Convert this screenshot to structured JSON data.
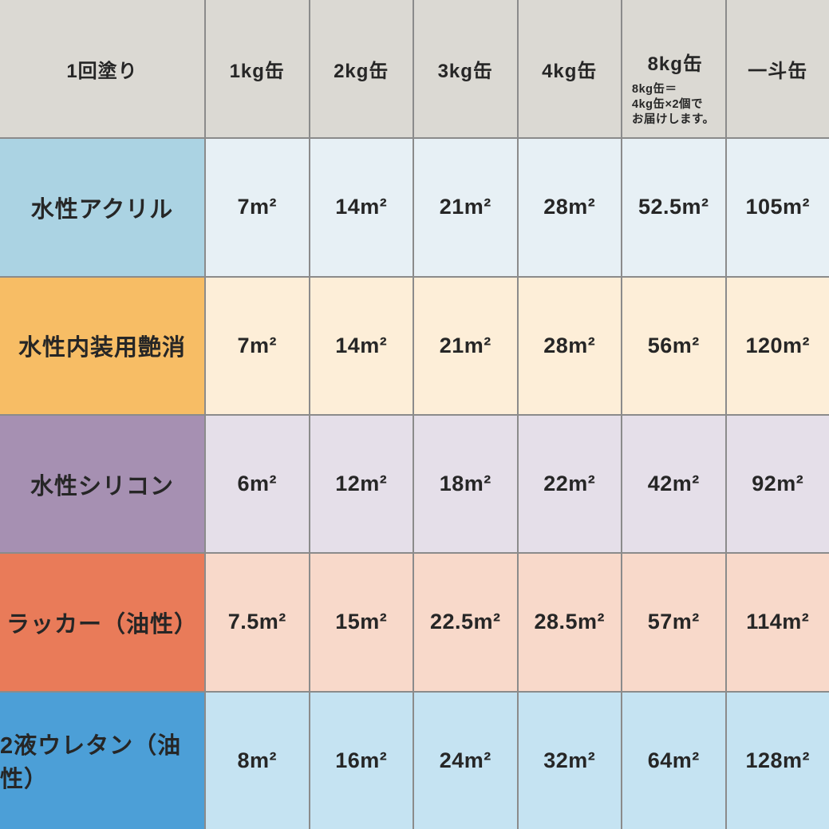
{
  "colors": {
    "header_bg": "#dbd9d3",
    "grid_line": "#8b8b8b",
    "text": "#262626"
  },
  "table": {
    "header": {
      "row_label": "1回塗り",
      "columns": [
        "1kg缶",
        "2kg缶",
        "3kg缶",
        "4kg缶",
        "8kg缶",
        "一斗缶"
      ],
      "note_lines": [
        "8kg缶＝",
        "4kg缶×2個で",
        "お届けします。"
      ]
    },
    "rows": [
      {
        "label": "水性アクリル",
        "label_bg": "#abd3e3",
        "cell_bg": "#e7f0f5",
        "values": [
          "7m²",
          "14m²",
          "21m²",
          "28m²",
          "52.5m²",
          "105m²"
        ]
      },
      {
        "label": "水性内装用艶消",
        "label_bg": "#f7bd65",
        "cell_bg": "#fdeed8",
        "values": [
          "7m²",
          "14m²",
          "21m²",
          "28m²",
          "56m²",
          "120m²"
        ]
      },
      {
        "label": "水性シリコン",
        "label_bg": "#a690b2",
        "cell_bg": "#e5dfe9",
        "values": [
          "6m²",
          "12m²",
          "18m²",
          "22m²",
          "42m²",
          "92m²"
        ]
      },
      {
        "label": "ラッカー（油性）",
        "label_bg": "#e97b59",
        "cell_bg": "#f8d9ca",
        "values": [
          "7.5m²",
          "15m²",
          "22.5m²",
          "28.5m²",
          "57m²",
          "114m²"
        ]
      },
      {
        "label": "2液ウレタン（油性）",
        "label_bg": "#4c9fd7",
        "cell_bg": "#c5e3f2",
        "values": [
          "8m²",
          "16m²",
          "24m²",
          "32m²",
          "64m²",
          "128m²"
        ]
      }
    ]
  },
  "chart_data": {
    "type": "table",
    "title": "1回塗り",
    "unit": "m²",
    "columns": [
      "1kg缶",
      "2kg缶",
      "3kg缶",
      "4kg缶",
      "8kg缶",
      "一斗缶"
    ],
    "rows": [
      {
        "name": "水性アクリル",
        "values": [
          7,
          14,
          21,
          28,
          52.5,
          105
        ]
      },
      {
        "name": "水性内装用艶消",
        "values": [
          7,
          14,
          21,
          28,
          56,
          120
        ]
      },
      {
        "name": "水性シリコン",
        "values": [
          6,
          12,
          18,
          22,
          42,
          92
        ]
      },
      {
        "name": "ラッカー（油性）",
        "values": [
          7.5,
          15,
          22.5,
          28.5,
          57,
          114
        ]
      },
      {
        "name": "2液ウレタン（油性）",
        "values": [
          8,
          16,
          24,
          32,
          64,
          128
        ]
      }
    ],
    "note": "8kg缶＝4kg缶×2個でお届けします。"
  }
}
